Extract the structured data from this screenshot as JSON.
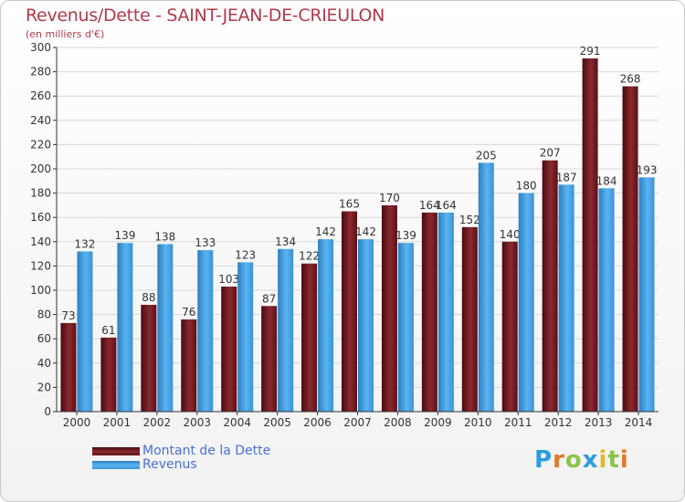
{
  "title": "Revenus/Dette - SAINT-JEAN-DE-CRIEULON",
  "subtitle": "(en milliers d'€)",
  "logo": {
    "letters": [
      {
        "ch": "P",
        "color": "#2b9de0"
      },
      {
        "ch": "r",
        "color": "#e07a2b"
      },
      {
        "ch": "o",
        "color": "#8bc34a"
      },
      {
        "ch": "x",
        "color": "#2b9de0"
      },
      {
        "ch": "i",
        "color": "#e0b82b"
      },
      {
        "ch": "t",
        "color": "#8bc34a"
      },
      {
        "ch": "i",
        "color": "#e07a2b"
      }
    ]
  },
  "colors": {
    "dette": "#7b1c22",
    "revenus": "#3f9de0",
    "grid": "#d8d8d8",
    "axis": "#333333"
  },
  "chart_data": {
    "type": "bar",
    "categories": [
      "2000",
      "2001",
      "2002",
      "2003",
      "2004",
      "2005",
      "2006",
      "2007",
      "2008",
      "2009",
      "2010",
      "2011",
      "2012",
      "2013",
      "2014"
    ],
    "series": [
      {
        "name": "Montant de la Dette",
        "values": [
          73,
          61,
          88,
          76,
          103,
          87,
          122,
          165,
          170,
          164,
          152,
          140,
          207,
          291,
          268
        ]
      },
      {
        "name": "Revenus",
        "values": [
          132,
          139,
          138,
          133,
          123,
          134,
          142,
          142,
          139,
          164,
          205,
          180,
          187,
          184,
          193
        ]
      }
    ],
    "ylim": [
      0,
      300
    ],
    "yticks": [
      0,
      20,
      40,
      60,
      80,
      100,
      120,
      140,
      160,
      180,
      200,
      220,
      240,
      260,
      280,
      300
    ],
    "grid": true,
    "legend_placement": "bottom-left"
  }
}
